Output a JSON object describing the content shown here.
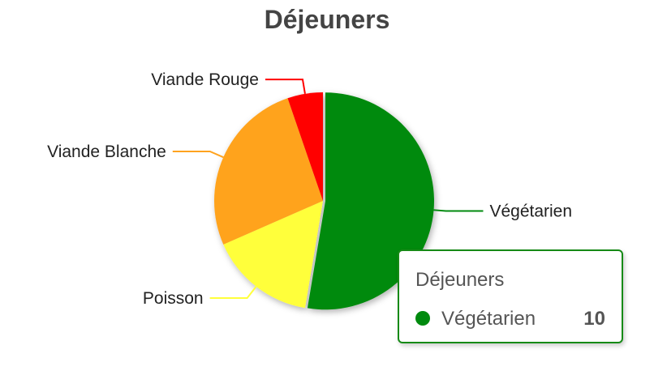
{
  "chart_data": {
    "type": "pie",
    "title": "Déjeuners",
    "categories": [
      "Végétarien",
      "Poisson",
      "Viande Blanche",
      "Viande Rouge"
    ],
    "values": [
      10,
      3,
      5,
      1
    ],
    "colors": [
      "#008a0e",
      "#ffff3b",
      "#ffa31f",
      "#ff0000"
    ],
    "legend": "none"
  },
  "tooltip": {
    "title": "Déjeuners",
    "series_label": "Végétarien",
    "value": "10",
    "color": "#008a0e",
    "border_color": "#168a16"
  }
}
